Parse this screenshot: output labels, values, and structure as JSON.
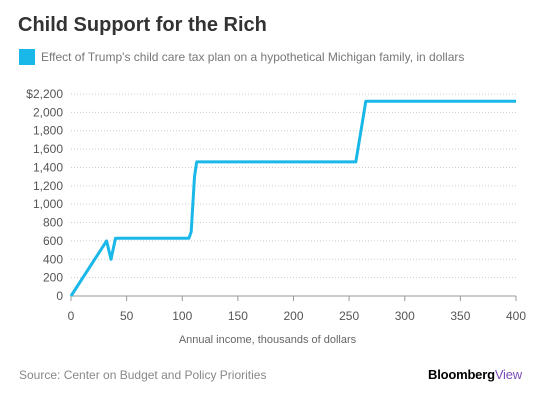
{
  "title": "Child Support for the Rich",
  "legend": {
    "label": "Effect of Trump's child care tax plan on a hypothetical Michigan family, in dollars",
    "color": "#1ab8e8"
  },
  "source": "Source: Center on Budget and Policy Priorities",
  "brand": {
    "main": "Bloomberg",
    "sub": "View"
  },
  "chart_data": {
    "type": "line",
    "title": "Child Support for the Rich",
    "xlabel": "Annual income, thousands of dollars",
    "ylabel": "",
    "xlim": [
      0,
      400
    ],
    "ylim": [
      0,
      2200
    ],
    "x_ticks": [
      0,
      50,
      100,
      150,
      200,
      250,
      300,
      350,
      400
    ],
    "x_tick_labels": [
      "0",
      "50",
      "100",
      "150",
      "200",
      "250",
      "300",
      "350",
      "400"
    ],
    "y_ticks": [
      0,
      200,
      400,
      600,
      800,
      1000,
      1200,
      1400,
      1600,
      1800,
      2000,
      2200
    ],
    "y_tick_labels": [
      "0",
      "200",
      "400",
      "600",
      "800",
      "1,000",
      "1,200",
      "1,400",
      "1,600",
      "1,800",
      "2,000",
      "$2,200"
    ],
    "grid": "horizontal dotted",
    "series": [
      {
        "name": "Effect of Trump's child care tax plan on a hypothetical Michigan family, in dollars",
        "color": "#1ab8e8",
        "x": [
          0,
          32,
          36,
          40,
          106,
          108,
          111,
          113,
          256,
          262,
          265,
          400
        ],
        "y": [
          0,
          600,
          400,
          630,
          630,
          700,
          1300,
          1460,
          1460,
          1900,
          2120,
          2120
        ]
      }
    ]
  }
}
